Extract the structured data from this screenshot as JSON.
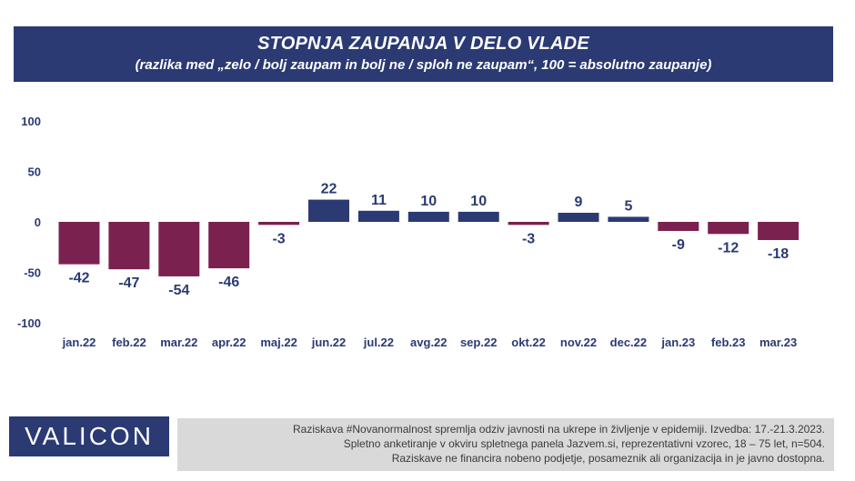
{
  "header": {
    "title": "STOPNJA ZAUPANJA V DELO VLADE",
    "subtitle": "(razlika med „zelo / bolj zaupam in bolj ne / sploh ne zaupam“, 100 = absolutno zaupanje)"
  },
  "chart_data": {
    "type": "bar",
    "title": "STOPNJA ZAUPANJA V DELO VLADE",
    "subtitle": "(razlika med „zelo / bolj zaupam in bolj ne / sploh ne zaupam“, 100 = absolutno zaupanje)",
    "categories": [
      "jan.22",
      "feb.22",
      "mar.22",
      "apr.22",
      "maj.22",
      "jun.22",
      "jul.22",
      "avg.22",
      "sep.22",
      "okt.22",
      "nov.22",
      "dec.22",
      "jan.23",
      "feb.23",
      "mar.23"
    ],
    "values": [
      -42,
      -47,
      -54,
      -46,
      -3,
      22,
      11,
      10,
      10,
      -3,
      9,
      5,
      -9,
      -12,
      -18
    ],
    "ylim": [
      -100,
      100
    ],
    "yticks": [
      100,
      50,
      0,
      -50,
      -100
    ],
    "xlabel": "",
    "ylabel": "",
    "grid": false,
    "colors": {
      "positive": "#2b3a73",
      "negative": "#7b2150",
      "label": "#2b3a73"
    }
  },
  "footer": {
    "logo": "VALICON",
    "lines": [
      "Raziskava #Novanormalnost spremlja odziv javnosti na ukrepe in življenje v epidemiji. Izvedba: 17.-21.3.2023.",
      "Spletno anketiranje v okviru spletnega panela Jazvem.si, reprezentativni vzorec, 18 – 75 let, n=504.",
      "Raziskave ne financira nobeno podjetje, posameznik ali organizacija in je javno dostopna."
    ]
  }
}
